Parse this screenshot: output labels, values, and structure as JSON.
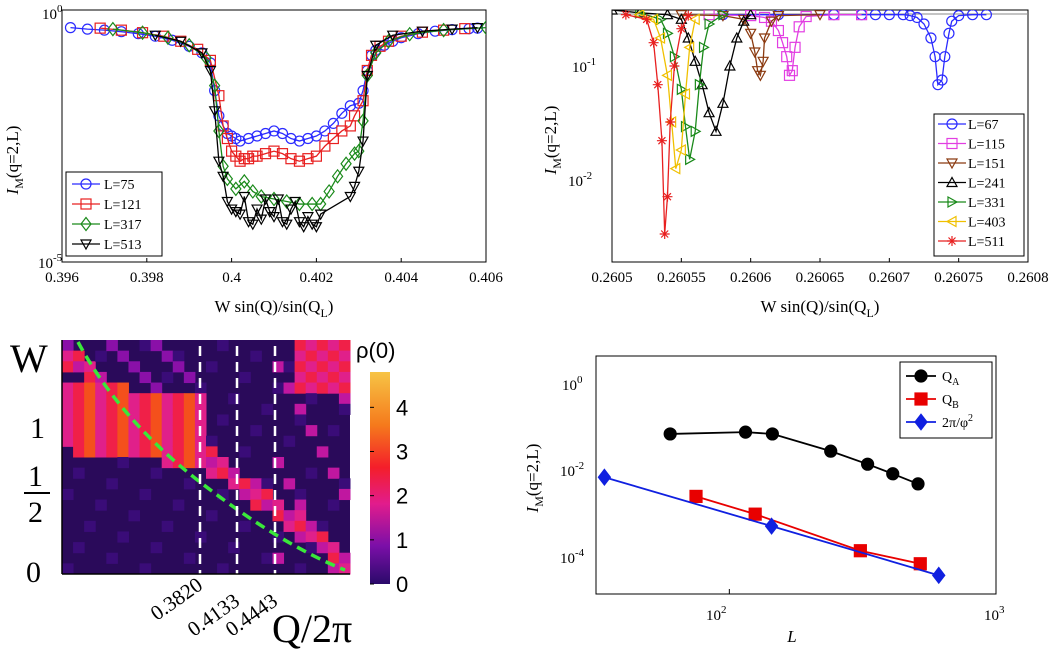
{
  "panels": {
    "a": {
      "type": "line",
      "xlim": [
        0.396,
        0.406
      ],
      "ylim_exp": [
        -5,
        0
      ],
      "yscale": "log",
      "x_ticks": [
        "0.396",
        "0.398",
        "0.4",
        "0.402",
        "0.404",
        "0.406"
      ],
      "y_ticks": [
        {
          "base": "10",
          "exp": "-5"
        },
        {
          "base": "10",
          "exp": "0"
        }
      ],
      "xlabel": {
        "main": "W sin(Q)/sin(Q",
        "sub": "L",
        "close": ")"
      },
      "ylabel": {
        "main": "I",
        "sub": "M",
        "rest": "(q=2,L)"
      },
      "legend_position": "bottom-left",
      "series": [
        {
          "name": "L=75",
          "color": "#2b2bff",
          "marker": "circle",
          "x": [
            0.3962,
            0.3966,
            0.397,
            0.3974,
            0.3978,
            0.3982,
            0.3986,
            0.399,
            0.3993,
            0.3995,
            0.3996,
            0.3997,
            0.3998,
            0.3999,
            0.4,
            0.4001,
            0.4002,
            0.4004,
            0.4006,
            0.4008,
            0.401,
            0.4012,
            0.4014,
            0.4016,
            0.4018,
            0.402,
            0.4022,
            0.4024,
            0.4026,
            0.4028,
            0.403,
            0.4031,
            0.4032,
            0.4033,
            0.4034,
            0.4036,
            0.4038,
            0.404,
            0.4044,
            0.4048,
            0.4052,
            0.4056,
            0.4058
          ],
          "y": [
            -0.35,
            -0.38,
            -0.4,
            -0.43,
            -0.47,
            -0.52,
            -0.6,
            -0.72,
            -0.85,
            -1.05,
            -1.6,
            -2.1,
            -2.3,
            -2.45,
            -2.5,
            -2.55,
            -2.6,
            -2.55,
            -2.5,
            -2.45,
            -2.4,
            -2.45,
            -2.55,
            -2.6,
            -2.55,
            -2.5,
            -2.4,
            -2.25,
            -2.05,
            -1.9,
            -1.85,
            -1.6,
            -1.2,
            -0.9,
            -0.8,
            -0.7,
            -0.62,
            -0.55,
            -0.47,
            -0.42,
            -0.39,
            -0.37,
            -0.36
          ]
        },
        {
          "name": "L=121",
          "color": "#e82020",
          "marker": "square",
          "x": [
            0.3969,
            0.3974,
            0.3979,
            0.3984,
            0.3988,
            0.3992,
            0.3995,
            0.3997,
            0.3998,
            0.3999,
            0.4,
            0.4001,
            0.4002,
            0.4003,
            0.4004,
            0.4005,
            0.4006,
            0.4008,
            0.401,
            0.4012,
            0.4014,
            0.4016,
            0.4018,
            0.402,
            0.4022,
            0.4024,
            0.4026,
            0.4028,
            0.4029,
            0.4031,
            0.4032,
            0.4033,
            0.4035,
            0.4037,
            0.404,
            0.4045,
            0.405,
            0.4055
          ],
          "y": [
            -0.36,
            -0.4,
            -0.45,
            -0.52,
            -0.62,
            -0.78,
            -1.0,
            -1.7,
            -2.3,
            -2.55,
            -2.8,
            -2.9,
            -3.0,
            -2.95,
            -2.95,
            -2.9,
            -2.9,
            -2.85,
            -2.8,
            -2.85,
            -2.95,
            -3.0,
            -2.95,
            -2.9,
            -2.7,
            -2.55,
            -2.4,
            -2.3,
            -2.1,
            -1.8,
            -1.2,
            -0.9,
            -0.72,
            -0.62,
            -0.52,
            -0.44,
            -0.4,
            -0.37
          ]
        },
        {
          "name": "L=317",
          "color": "#1a8a1a",
          "marker": "diamond",
          "x": [
            0.3972,
            0.3979,
            0.3985,
            0.399,
            0.3994,
            0.3996,
            0.3997,
            0.3998,
            0.3999,
            0.4001,
            0.4003,
            0.4005,
            0.4007,
            0.401,
            0.4013,
            0.4016,
            0.4019,
            0.4021,
            0.4023,
            0.4025,
            0.4027,
            0.4029,
            0.403,
            0.4031,
            0.4032,
            0.4034,
            0.4037,
            0.4042,
            0.405,
            0.406
          ],
          "y": [
            -0.38,
            -0.45,
            -0.55,
            -0.7,
            -0.95,
            -1.5,
            -2.4,
            -3.1,
            -3.35,
            -3.55,
            -3.4,
            -3.6,
            -3.7,
            -3.75,
            -3.8,
            -3.85,
            -3.85,
            -3.85,
            -3.6,
            -3.3,
            -3.05,
            -2.85,
            -2.8,
            -2.2,
            -1.3,
            -0.85,
            -0.62,
            -0.48,
            -0.4,
            -0.35
          ]
        },
        {
          "name": "L=513",
          "color": "#000000",
          "marker": "triangle-down",
          "x": [
            0.3982,
            0.3988,
            0.3993,
            0.3995,
            0.3996,
            0.3997,
            0.3998,
            0.3999,
            0.4,
            0.4001,
            0.4002,
            0.4003,
            0.4004,
            0.4005,
            0.4006,
            0.4007,
            0.4008,
            0.4009,
            0.401,
            0.4011,
            0.4012,
            0.4013,
            0.4014,
            0.4015,
            0.4016,
            0.4017,
            0.4018,
            0.4019,
            0.402,
            0.4021,
            0.4028,
            0.4029,
            0.403,
            0.4031,
            0.4032,
            0.4034,
            0.4038,
            0.4045,
            0.4052,
            0.4058
          ],
          "y": [
            -0.5,
            -0.62,
            -0.85,
            -1.2,
            -2.0,
            -3.0,
            -3.3,
            -3.8,
            -3.95,
            -4.0,
            -4.05,
            -3.7,
            -4.2,
            -4.25,
            -3.95,
            -4.15,
            -3.75,
            -4.0,
            -4.1,
            -3.75,
            -4.2,
            -4.25,
            -3.95,
            -3.8,
            -4.2,
            -4.3,
            -4.1,
            -4.25,
            -4.3,
            -4.05,
            -3.7,
            -3.5,
            -3.2,
            -2.6,
            -1.3,
            -0.7,
            -0.5,
            -0.42,
            -0.38,
            -0.35
          ]
        }
      ]
    },
    "b": {
      "type": "line",
      "xlim": [
        0.2605,
        0.2608
      ],
      "ylim_exp": [
        -3.2,
        -0.5
      ],
      "yscale": "log",
      "x_ticks": [
        "0.2605",
        "0.26055",
        "0.2606",
        "0.26065",
        "0.2607",
        "0.26075",
        "0.2608"
      ],
      "y_ticks": [
        {
          "base": "10",
          "exp": "-2"
        },
        {
          "base": "10",
          "exp": "-1"
        }
      ],
      "xlabel": {
        "main": "W sin(Q)/sin(Q",
        "sub": "L",
        "close": ")"
      },
      "ylabel": {
        "main": "I",
        "sub": "M",
        "rest": "(q=2,L)"
      },
      "legend_position": "bottom-right",
      "series": [
        {
          "name": "L=67",
          "color": "#2b2bff",
          "marker": "circle",
          "x": [
            0.26058,
            0.26062,
            0.26066,
            0.26068,
            0.26069,
            0.2607,
            0.26071,
            0.260715,
            0.26072,
            0.260725,
            0.26073,
            0.260733,
            0.260735,
            0.260738,
            0.26074,
            0.260743,
            0.260745,
            0.26075,
            0.26076,
            0.26077
          ],
          "y": [
            -0.55,
            -0.55,
            -0.55,
            -0.55,
            -0.55,
            -0.55,
            -0.55,
            -0.56,
            -0.58,
            -0.65,
            -0.8,
            -1.0,
            -1.3,
            -1.25,
            -1.0,
            -0.75,
            -0.62,
            -0.56,
            -0.55,
            -0.55
          ]
        },
        {
          "name": "L=115",
          "color": "#e23ee2",
          "marker": "square",
          "x": [
            0.26057,
            0.2606,
            0.26061,
            0.260615,
            0.26062,
            0.260623,
            0.260626,
            0.260628,
            0.26063,
            0.260632,
            0.260635,
            0.26064,
            0.26066,
            0.26068
          ],
          "y": [
            -0.55,
            -0.56,
            -0.58,
            -0.62,
            -0.72,
            -0.85,
            -1.0,
            -1.2,
            -1.15,
            -0.9,
            -0.68,
            -0.57,
            -0.55,
            -0.55
          ]
        },
        {
          "name": "L=151",
          "color": "#8b3a10",
          "marker": "triangle-down",
          "x": [
            0.26055,
            0.26058,
            0.260595,
            0.2606,
            0.260603,
            0.260605,
            0.260607,
            0.260609,
            0.26061,
            0.260615,
            0.26062,
            0.26065
          ],
          "y": [
            -0.55,
            -0.56,
            -0.6,
            -0.75,
            -0.95,
            -1.15,
            -1.2,
            -1.05,
            -0.8,
            -0.62,
            -0.56,
            -0.55
          ]
        },
        {
          "name": "L=241",
          "color": "#000000",
          "marker": "triangle-up",
          "x": [
            0.2605,
            0.26052,
            0.26054,
            0.26055,
            0.260555,
            0.26056,
            0.260565,
            0.26057,
            0.260575,
            0.26058,
            0.260585,
            0.26059,
            0.260595,
            0.2606
          ],
          "y": [
            -0.5,
            -0.53,
            -0.55,
            -0.6,
            -0.8,
            -1.05,
            -1.3,
            -1.6,
            -1.8,
            -1.5,
            -1.1,
            -0.8,
            -0.62,
            -0.55
          ]
        },
        {
          "name": "L=331",
          "color": "#1a8a1a",
          "marker": "triangle-right",
          "x": [
            0.26052,
            0.260535,
            0.26054,
            0.260545,
            0.26055,
            0.260553,
            0.260556,
            0.26056,
            0.260563,
            0.260566,
            0.26057,
            0.26058
          ],
          "y": [
            -0.53,
            -0.6,
            -0.75,
            -1.0,
            -1.35,
            -1.75,
            -2.1,
            -1.8,
            -1.3,
            -0.9,
            -0.65,
            -0.55
          ]
        },
        {
          "name": "L=403",
          "color": "#f0c000",
          "marker": "triangle-left",
          "x": [
            0.26052,
            0.26053,
            0.260535,
            0.26054,
            0.260543,
            0.260546,
            0.26055,
            0.260553,
            0.260556,
            0.26056
          ],
          "y": [
            -0.55,
            -0.6,
            -0.8,
            -1.2,
            -1.7,
            -2.2,
            -2.0,
            -1.4,
            -0.9,
            -0.6
          ]
        },
        {
          "name": "L=511",
          "color": "#e82020",
          "marker": "asterisk",
          "x": [
            0.26051,
            0.260525,
            0.26053,
            0.260533,
            0.260536,
            0.260538,
            0.26054,
            0.260542,
            0.260545,
            0.26055,
            0.260555
          ],
          "y": [
            -0.55,
            -0.6,
            -0.85,
            -1.3,
            -1.9,
            -2.9,
            -2.5,
            -1.7,
            -1.1,
            -0.7,
            -0.56
          ]
        }
      ]
    },
    "c": {
      "type": "heatmap",
      "colorbar_title": "ρ(0)",
      "colorbar_ticks": [
        "0",
        "1",
        "2",
        "3",
        "4"
      ],
      "y_ticks": [
        "0",
        "1",
        "2",
        "1",
        "W"
      ],
      "x_ticks": [
        "0.3820",
        "0.4133",
        "0.4443"
      ],
      "xlabel": "Q/2π",
      "dashed_lines_x": [
        0.382,
        0.4133,
        0.4443
      ]
    },
    "d": {
      "type": "line",
      "xscale": "log",
      "yscale": "log",
      "xlim_exp": [
        1.5,
        3
      ],
      "ylim_exp": [
        -5,
        0.5
      ],
      "x_ticks": [
        {
          "base": "10",
          "exp": "2"
        },
        {
          "base": "10",
          "exp": "3"
        }
      ],
      "y_ticks": [
        {
          "base": "10",
          "exp": "0"
        },
        {
          "base": "10",
          "exp": "-2"
        },
        {
          "base": "10",
          "exp": "-4"
        }
      ],
      "xlabel": "L",
      "ylabel": {
        "main": "I",
        "sub": "M",
        "rest": "(q=2,L)"
      },
      "legend_position": "top-right",
      "series": [
        {
          "name": "Q",
          "sub": "A",
          "color": "#000000",
          "marker": "circle",
          "x": [
            60,
            115,
            145,
            240,
            330,
            410,
            510
          ],
          "y": [
            0.05,
            0.055,
            0.05,
            0.02,
            0.01,
            0.006,
            0.0035
          ]
        },
        {
          "name": "Q",
          "sub": "B",
          "color": "#e80000",
          "marker": "square",
          "x": [
            75,
            125,
            310,
            520
          ],
          "y": [
            0.0018,
            0.0007,
            0.0001,
            5e-05
          ]
        },
        {
          "name": "2π/φ",
          "sup": "2",
          "color": "#1020e0",
          "marker": "diamond",
          "x": [
            34,
            144,
            610
          ],
          "y": [
            0.005,
            0.00037,
            2.7e-05
          ]
        }
      ]
    }
  }
}
